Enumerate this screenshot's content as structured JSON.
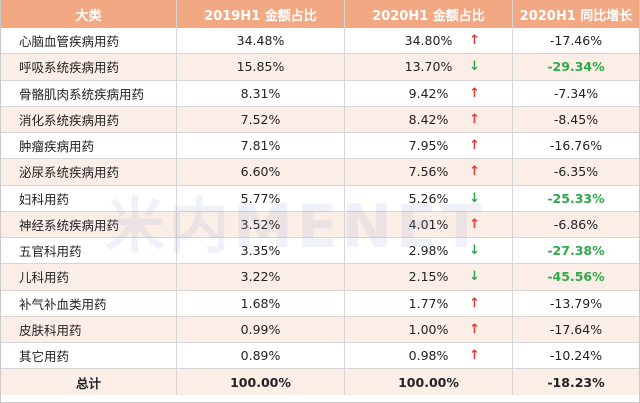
{
  "headers": [
    "大类",
    "2019H1 金额占比",
    "2020H1 金额占比",
    "2020H1 同比增长"
  ],
  "rows": [
    {
      "category": "心脑血管疾病用药",
      "share2019": "34.48%",
      "share2020": "34.80%",
      "arrow": "↑",
      "arrow_dir": "up",
      "growth": "-17.46%",
      "growth_highlight": false
    },
    {
      "category": "呼吸系统疾病用药",
      "share2019": "15.85%",
      "share2020": "13.70%",
      "arrow": "↓",
      "arrow_dir": "down",
      "growth": "-29.34%",
      "growth_highlight": true
    },
    {
      "category": "骨骼肌肉系统疾病用药",
      "share2019": "8.31%",
      "share2020": "9.42%",
      "arrow": "↑",
      "arrow_dir": "up",
      "growth": "-7.34%",
      "growth_highlight": false
    },
    {
      "category": "消化系统疾病用药",
      "share2019": "7.52%",
      "share2020": "8.42%",
      "arrow": "↑",
      "arrow_dir": "up",
      "growth": "-8.45%",
      "growth_highlight": false
    },
    {
      "category": "肿瘤疾病用药",
      "share2019": "7.81%",
      "share2020": "7.95%",
      "arrow": "↑",
      "arrow_dir": "up",
      "growth": "-16.76%",
      "growth_highlight": false
    },
    {
      "category": "泌尿系统疾病用药",
      "share2019": "6.60%",
      "share2020": "7.56%",
      "arrow": "↑",
      "arrow_dir": "up",
      "growth": "-6.35%",
      "growth_highlight": false
    },
    {
      "category": "妇科用药",
      "share2019": "5.77%",
      "share2020": "5.26%",
      "arrow": "↓",
      "arrow_dir": "down",
      "growth": "-25.33%",
      "growth_highlight": true
    },
    {
      "category": "神经系统疾病用药",
      "share2019": "3.52%",
      "share2020": "4.01%",
      "arrow": "↑",
      "arrow_dir": "up",
      "growth": "-6.86%",
      "growth_highlight": false
    },
    {
      "category": "五官科用药",
      "share2019": "3.35%",
      "share2020": "2.98%",
      "arrow": "↓",
      "arrow_dir": "down",
      "growth": "-27.38%",
      "growth_highlight": true
    },
    {
      "category": "儿科用药",
      "share2019": "3.22%",
      "share2020": "2.15%",
      "arrow": "↓",
      "arrow_dir": "down",
      "growth": "-45.56%",
      "growth_highlight": true
    },
    {
      "category": "补气补血类用药",
      "share2019": "1.68%",
      "share2020": "1.77%",
      "arrow": "↑",
      "arrow_dir": "up",
      "growth": "-13.79%",
      "growth_highlight": false
    },
    {
      "category": "皮肤科用药",
      "share2019": "0.99%",
      "share2020": "1.00%",
      "arrow": "↑",
      "arrow_dir": "up",
      "growth": "-17.64%",
      "growth_highlight": false
    },
    {
      "category": "其它用药",
      "share2019": "0.89%",
      "share2020": "0.98%",
      "arrow": "↑",
      "arrow_dir": "up",
      "growth": "-10.24%",
      "growth_highlight": false
    }
  ],
  "total": {
    "label": "总计",
    "share2019": "100.00%",
    "share2020": "100.00%",
    "growth": "-18.23%"
  },
  "watermark": "米内MENET",
  "colors": {
    "header_bg": "#f2a883",
    "alt_row_bg": "#fbeee6",
    "up_arrow": "#e53935",
    "down_arrow": "#2eaa4a",
    "highlight_text": "#2eaa4a"
  }
}
